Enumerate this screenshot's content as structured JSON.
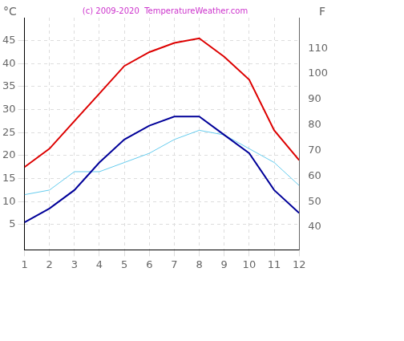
{
  "chart_data": {
    "type": "line",
    "title": "(c) 2009-2020  TemperatureWeather.com",
    "ylabel": "°C",
    "y2label": "F",
    "x": [
      1,
      2,
      3,
      4,
      5,
      6,
      7,
      8,
      9,
      10,
      11,
      12
    ],
    "xlim": [
      1,
      12
    ],
    "xticks": [
      1,
      2,
      3,
      4,
      5,
      6,
      7,
      8,
      9,
      10,
      11,
      12
    ],
    "ylim": [
      -0.5,
      50
    ],
    "yticks": [
      5,
      10,
      15,
      20,
      25,
      30,
      35,
      40,
      45
    ],
    "y2lim": [
      31.1,
      122
    ],
    "y2ticks": [
      40,
      50,
      60,
      70,
      80,
      90,
      100,
      110
    ],
    "grid": true,
    "series": [
      {
        "color": "#dd0000",
        "values": [
          17.5,
          21.5,
          27.5,
          33.5,
          39.5,
          42.5,
          44.5,
          45.5,
          41.5,
          36.5,
          25.5,
          19
        ]
      },
      {
        "color": "#000099",
        "values": [
          5.5,
          8.5,
          12.5,
          18.5,
          23.5,
          26.5,
          28.5,
          28.5,
          24.5,
          20.5,
          12.5,
          7.5
        ]
      },
      {
        "color": "#66ccee",
        "values": [
          11.5,
          12.5,
          16.5,
          16.5,
          18.5,
          20.5,
          23.5,
          25.5,
          24.5,
          21.5,
          18.5,
          13.5
        ]
      }
    ]
  }
}
